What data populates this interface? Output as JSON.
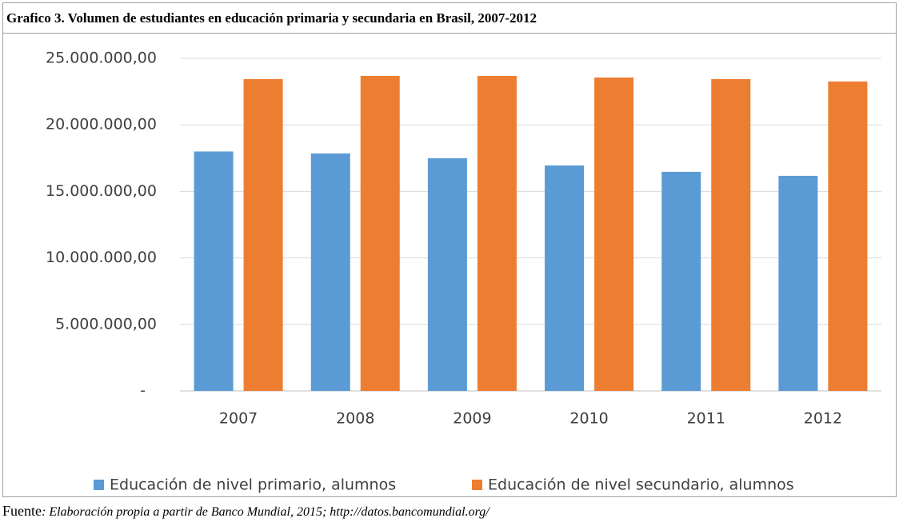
{
  "chart_data": {
    "type": "bar",
    "title": "Grafico 3. Volumen de estudiantes en educación primaria y secundaria en Brasil, 2007-2012",
    "categories": [
      "2007",
      "2008",
      "2009",
      "2010",
      "2011",
      "2012"
    ],
    "series": [
      {
        "name": "Educación de nivel primario, alumnos",
        "color": "#5b9bd5",
        "values": [
          18000000,
          17850000,
          17490000,
          16950000,
          16470000,
          16170000
        ]
      },
      {
        "name": "Educación de nivel secundario, alumnos",
        "color": "#ed7d31",
        "values": [
          23440000,
          23680000,
          23680000,
          23560000,
          23440000,
          23260000
        ]
      }
    ],
    "ylim": [
      0,
      25000000
    ],
    "yticks": [
      {
        "value": 0,
        "label": "-"
      },
      {
        "value": 5000000,
        "label": "5.000.000,00"
      },
      {
        "value": 10000000,
        "label": "10.000.000,00"
      },
      {
        "value": 15000000,
        "label": "15.000.000,00"
      },
      {
        "value": 20000000,
        "label": "20.000.000,00"
      },
      {
        "value": 25000000,
        "label": "25.000.000,00"
      }
    ],
    "grid": true,
    "legend": "bottom",
    "source_label": "Fuente",
    "source_text": ": Elaboración propia a partir de Banco Mundial, 2015; http://datos.bancomundial.org/"
  }
}
